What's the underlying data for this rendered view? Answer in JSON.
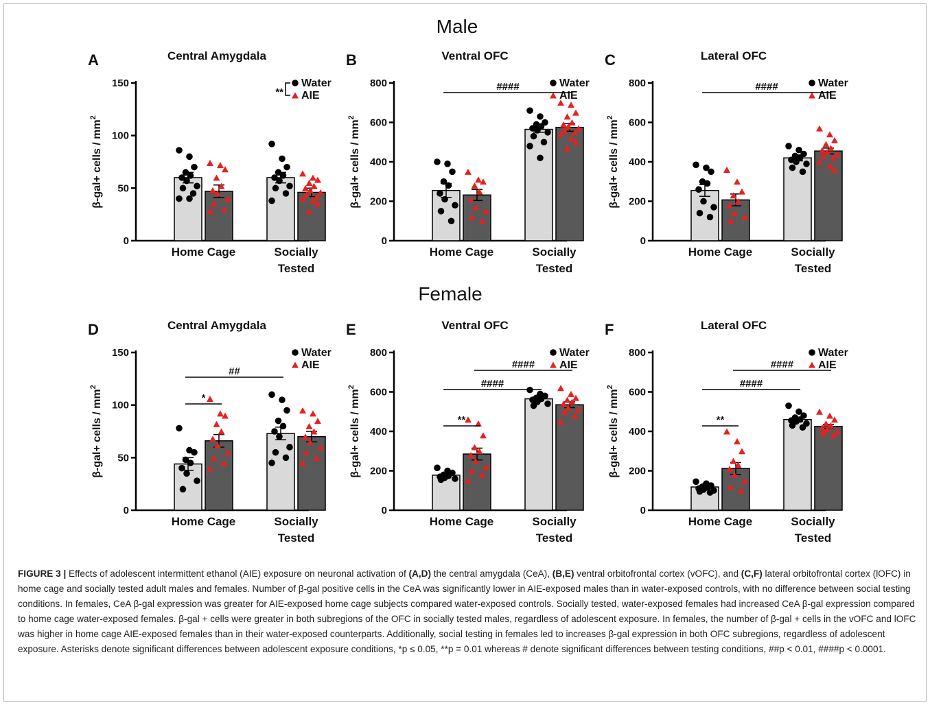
{
  "figure": {
    "group_titles": [
      "Male",
      "Female"
    ],
    "ylabel_main": "β-gal+ cells / mm",
    "ylabel_sup": "2",
    "categories": [
      [
        "Home Cage"
      ],
      [
        "Socially",
        "Tested"
      ]
    ],
    "legend": {
      "water": "Water",
      "aie": "AIE"
    },
    "colors": {
      "water_bar": "#d9d9d9",
      "aie_bar": "#595959",
      "water_point": "#000000",
      "aie_point": "#e32222"
    }
  },
  "chart_data": [
    {
      "type": "bar",
      "panel": "A",
      "title": "Central Amygdala",
      "group": "Male",
      "ylim": [
        0,
        150
      ],
      "yticks": [
        0,
        50,
        100,
        150
      ],
      "categories": [
        "Home Cage",
        "Socially Tested"
      ],
      "series": [
        {
          "name": "Water",
          "values": [
            60,
            60
          ],
          "sem": [
            5,
            5
          ],
          "points": [
            [
              86,
              80,
              70,
              65,
              62,
              60,
              57,
              52,
              50,
              45,
              40,
              40
            ],
            [
              92,
              78,
              70,
              65,
              62,
              60,
              57,
              52,
              50,
              45,
              38
            ]
          ]
        },
        {
          "name": "AIE",
          "values": [
            47,
            46
          ],
          "sem": [
            6,
            4
          ],
          "points": [
            [
              74,
              72,
              68,
              60,
              52,
              48,
              45,
              40,
              35,
              30,
              28
            ],
            [
              64,
              60,
              58,
              55,
              52,
              50,
              48,
              46,
              44,
              42,
              40,
              38,
              35,
              28
            ]
          ]
        }
      ],
      "sig": [
        {
          "label": "**",
          "type": "legend"
        }
      ]
    },
    {
      "type": "bar",
      "panel": "B",
      "title": "Ventral OFC",
      "group": "Male",
      "ylim": [
        0,
        800
      ],
      "yticks": [
        0,
        200,
        400,
        600,
        800
      ],
      "categories": [
        "Home Cage",
        "Socially Tested"
      ],
      "series": [
        {
          "name": "Water",
          "values": [
            255,
            565
          ],
          "sem": [
            35,
            15
          ],
          "points": [
            [
              400,
              390,
              350,
              300,
              280,
              240,
              210,
              180,
              150,
              100
            ],
            [
              660,
              630,
              600,
              590,
              580,
              570,
              560,
              550,
              530,
              500,
              480,
              420
            ]
          ]
        },
        {
          "name": "AIE",
          "values": [
            232,
            575
          ],
          "sem": [
            28,
            20
          ],
          "points": [
            [
              350,
              310,
              300,
              280,
              250,
              210,
              170,
              150,
              120,
              100
            ],
            [
              700,
              690,
              650,
              630,
              600,
              590,
              580,
              570,
              560,
              550,
              540,
              520,
              500,
              470
            ]
          ]
        }
      ],
      "sig": [
        {
          "label": "####",
          "from": [
            0,
            0
          ],
          "to": [
            1,
            1
          ]
        }
      ]
    },
    {
      "type": "bar",
      "panel": "C",
      "title": "Lateral OFC",
      "group": "Male",
      "ylim": [
        0,
        800
      ],
      "yticks": [
        0,
        200,
        400,
        600,
        800
      ],
      "categories": [
        "Home Cage",
        "Socially Tested"
      ],
      "series": [
        {
          "name": "Water",
          "values": [
            255,
            420
          ],
          "sem": [
            30,
            15
          ],
          "points": [
            [
              385,
              370,
              350,
              300,
              290,
              260,
              200,
              170,
              140,
              120
            ],
            [
              480,
              460,
              440,
              430,
              420,
              410,
              400,
              390,
              370,
              350
            ]
          ]
        },
        {
          "name": "AIE",
          "values": [
            207,
            455
          ],
          "sem": [
            30,
            15
          ],
          "points": [
            [
              360,
              300,
              250,
              230,
              200,
              180,
              140,
              120,
              100
            ],
            [
              570,
              540,
              510,
              490,
              470,
              460,
              450,
              440,
              430,
              420,
              400,
              380,
              360
            ]
          ]
        }
      ],
      "sig": [
        {
          "label": "####",
          "from": [
            0,
            0
          ],
          "to": [
            1,
            1
          ]
        }
      ]
    },
    {
      "type": "bar",
      "panel": "D",
      "title": "Central Amygdala",
      "group": "Female",
      "ylim": [
        0,
        150
      ],
      "yticks": [
        0,
        50,
        100,
        150
      ],
      "categories": [
        "Home Cage",
        "Socially Tested"
      ],
      "series": [
        {
          "name": "Water",
          "values": [
            44,
            73
          ],
          "sem": [
            6,
            6
          ],
          "points": [
            [
              78,
              57,
              55,
              48,
              45,
              40,
              35,
              28,
              20
            ],
            [
              110,
              105,
              95,
              85,
              80,
              75,
              70,
              60,
              55,
              50,
              45
            ]
          ]
        },
        {
          "name": "AIE",
          "values": [
            66,
            70
          ],
          "sem": [
            6,
            5
          ],
          "points": [
            [
              106,
              92,
              90,
              82,
              75,
              68,
              62,
              55,
              50,
              45,
              40
            ],
            [
              95,
              92,
              85,
              80,
              75,
              70,
              65,
              60,
              55,
              50,
              45
            ]
          ]
        }
      ],
      "sig": [
        {
          "label": "*",
          "from": [
            0,
            0
          ],
          "to": [
            0,
            1
          ]
        },
        {
          "label": "##",
          "from": [
            0,
            0
          ],
          "to": [
            1,
            0
          ]
        }
      ]
    },
    {
      "type": "bar",
      "panel": "E",
      "title": "Ventral OFC",
      "group": "Female",
      "ylim": [
        0,
        800
      ],
      "yticks": [
        0,
        200,
        400,
        600,
        800
      ],
      "categories": [
        "Home Cage",
        "Socially Tested"
      ],
      "series": [
        {
          "name": "Water",
          "values": [
            178,
            565
          ],
          "sem": [
            8,
            10
          ],
          "points": [
            [
              215,
              200,
              190,
              180,
              175,
              170,
              165,
              160,
              155
            ],
            [
              610,
              590,
              580,
              570,
              565,
              560,
              550,
              540,
              530
            ]
          ]
        },
        {
          "name": "AIE",
          "values": [
            285,
            535
          ],
          "sem": [
            30,
            15
          ],
          "points": [
            [
              460,
              440,
              380,
              320,
              300,
              280,
              250,
              220,
              200,
              180,
              150
            ],
            [
              620,
              590,
              570,
              560,
              550,
              540,
              520,
              510,
              500,
              480,
              450
            ]
          ]
        }
      ],
      "sig": [
        {
          "label": "**",
          "from": [
            0,
            0
          ],
          "to": [
            0,
            1
          ]
        },
        {
          "label": "####",
          "from": [
            0,
            0
          ],
          "to": [
            1,
            0
          ]
        },
        {
          "label": "####",
          "from": [
            0,
            1
          ],
          "to": [
            1,
            1
          ]
        }
      ]
    },
    {
      "type": "bar",
      "panel": "F",
      "title": "Lateral OFC",
      "group": "Female",
      "ylim": [
        0,
        800
      ],
      "yticks": [
        0,
        200,
        400,
        600,
        800
      ],
      "categories": [
        "Home Cage",
        "Socially Tested"
      ],
      "series": [
        {
          "name": "Water",
          "values": [
            118,
            460
          ],
          "sem": [
            8,
            10
          ],
          "points": [
            [
              145,
              135,
              125,
              120,
              115,
              110,
              105,
              100,
              95,
              90
            ],
            [
              530,
              500,
              480,
              470,
              460,
              455,
              450,
              440,
              430,
              420
            ]
          ]
        },
        {
          "name": "AIE",
          "values": [
            212,
            425
          ],
          "sem": [
            30,
            10
          ],
          "points": [
            [
              400,
              350,
              300,
              250,
              230,
              210,
              180,
              150,
              120,
              100
            ],
            [
              500,
              480,
              460,
              440,
              430,
              420,
              410,
              400,
              390,
              380
            ]
          ]
        }
      ],
      "sig": [
        {
          "label": "**",
          "from": [
            0,
            0
          ],
          "to": [
            0,
            1
          ]
        },
        {
          "label": "####",
          "from": [
            0,
            0
          ],
          "to": [
            1,
            0
          ]
        },
        {
          "label": "####",
          "from": [
            0,
            1
          ],
          "to": [
            1,
            1
          ]
        }
      ]
    }
  ],
  "caption": {
    "label": "FIGURE 3 |",
    "s1": " Effects of adolescent intermittent ethanol (AIE) exposure on neuronal activation of ",
    "b1": "(A,D)",
    "s2": " the central amygdala (CeA), ",
    "b2": "(B,E)",
    "s3": " ventral orbitofrontal cortex (vOFC), and ",
    "b3": "(C,F)",
    "s4": " lateral orbitofrontal cortex (lOFC) in home cage and socially tested adult males and females. Number of β-gal positive cells in the CeA was significantly lower in AIE-exposed males than in water-exposed controls, with no difference between social testing conditions. In females, CeA β-gal expression was greater for AIE-exposed home cage subjects compared water-exposed controls. Socially tested, water-exposed females had increased CeA β-gal expression compared to home cage water-exposed females. β-gal + cells were greater in both subregions of the OFC in socially tested males, regardless of adolescent exposure. In females, the number of β-gal + cells in the vOFC and lOFC was higher in home cage AIE-exposed females than in their water-exposed counterparts. Additionally, social testing in females led to increases β-gal expression in both OFC subregions, regardless of adolescent exposure. Asterisks denote significant differences between adolescent exposure conditions, *p ≤ 0.05, **p = 0.01 whereas # denote significant differences between testing conditions, ##p < 0.01, ####p < 0.0001."
  }
}
